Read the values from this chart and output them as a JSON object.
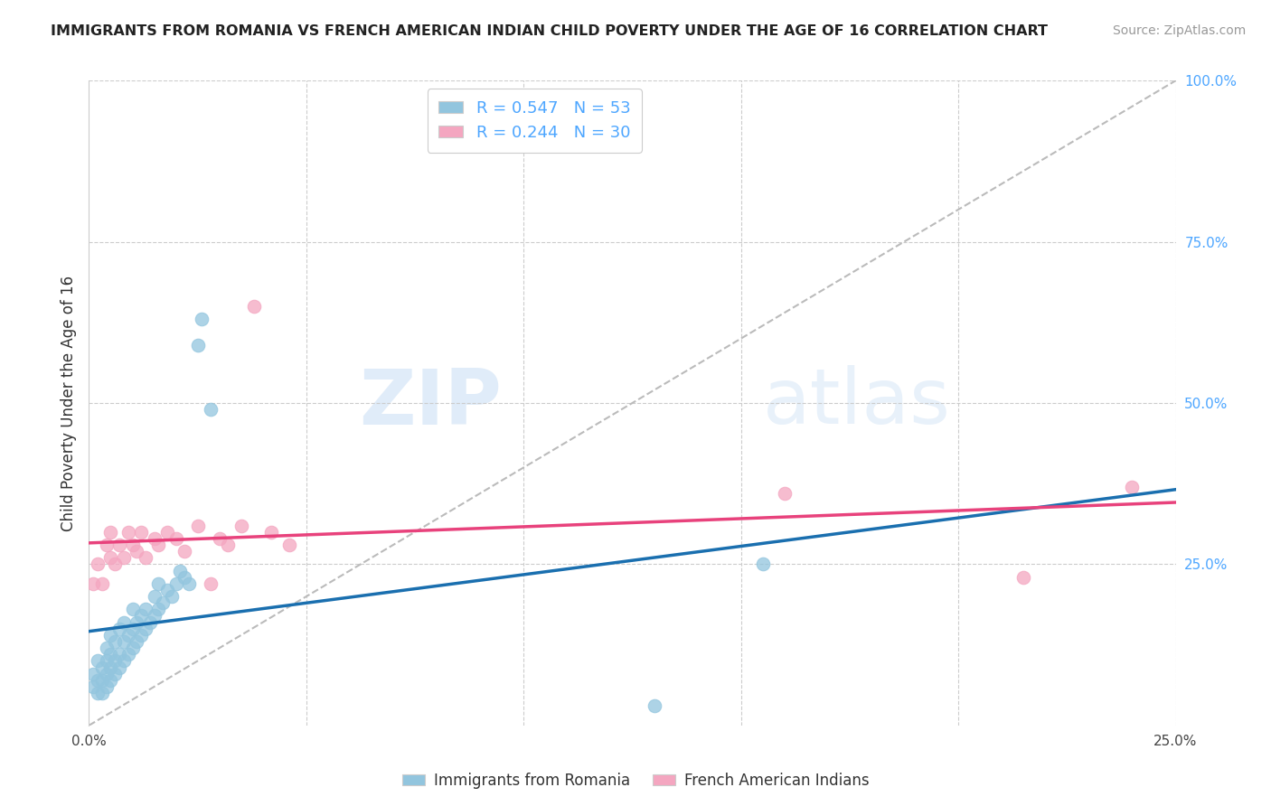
{
  "title": "IMMIGRANTS FROM ROMANIA VS FRENCH AMERICAN INDIAN CHILD POVERTY UNDER THE AGE OF 16 CORRELATION CHART",
  "source": "Source: ZipAtlas.com",
  "ylabel": "Child Poverty Under the Age of 16",
  "legend_label1": "Immigrants from Romania",
  "legend_label2": "French American Indians",
  "r1": 0.547,
  "n1": 53,
  "r2": 0.244,
  "n2": 30,
  "xlim": [
    0.0,
    0.25
  ],
  "ylim": [
    0.0,
    1.0
  ],
  "color_blue": "#92c5de",
  "color_pink": "#f4a6c0",
  "color_blue_line": "#1a6faf",
  "color_pink_line": "#e8427c",
  "color_dashed_line": "#bbbbbb",
  "watermark_zip": "ZIP",
  "watermark_atlas": "atlas",
  "blue_points_x": [
    0.001,
    0.001,
    0.002,
    0.002,
    0.002,
    0.003,
    0.003,
    0.003,
    0.004,
    0.004,
    0.004,
    0.004,
    0.005,
    0.005,
    0.005,
    0.005,
    0.006,
    0.006,
    0.006,
    0.007,
    0.007,
    0.007,
    0.008,
    0.008,
    0.008,
    0.009,
    0.009,
    0.01,
    0.01,
    0.01,
    0.011,
    0.011,
    0.012,
    0.012,
    0.013,
    0.013,
    0.014,
    0.015,
    0.015,
    0.016,
    0.016,
    0.017,
    0.018,
    0.019,
    0.02,
    0.021,
    0.022,
    0.023,
    0.025,
    0.026,
    0.028,
    0.13,
    0.155
  ],
  "blue_points_y": [
    0.06,
    0.08,
    0.05,
    0.07,
    0.1,
    0.05,
    0.07,
    0.09,
    0.06,
    0.08,
    0.1,
    0.12,
    0.07,
    0.09,
    0.11,
    0.14,
    0.08,
    0.1,
    0.13,
    0.09,
    0.11,
    0.15,
    0.1,
    0.13,
    0.16,
    0.11,
    0.14,
    0.12,
    0.15,
    0.18,
    0.13,
    0.16,
    0.14,
    0.17,
    0.15,
    0.18,
    0.16,
    0.17,
    0.2,
    0.18,
    0.22,
    0.19,
    0.21,
    0.2,
    0.22,
    0.24,
    0.23,
    0.22,
    0.59,
    0.63,
    0.49,
    0.03,
    0.25
  ],
  "pink_points_x": [
    0.001,
    0.002,
    0.003,
    0.004,
    0.005,
    0.005,
    0.006,
    0.007,
    0.008,
    0.009,
    0.01,
    0.011,
    0.012,
    0.013,
    0.015,
    0.016,
    0.018,
    0.02,
    0.022,
    0.025,
    0.028,
    0.03,
    0.032,
    0.035,
    0.038,
    0.042,
    0.046,
    0.16,
    0.215,
    0.24
  ],
  "pink_points_y": [
    0.22,
    0.25,
    0.22,
    0.28,
    0.26,
    0.3,
    0.25,
    0.28,
    0.26,
    0.3,
    0.28,
    0.27,
    0.3,
    0.26,
    0.29,
    0.28,
    0.3,
    0.29,
    0.27,
    0.31,
    0.22,
    0.29,
    0.28,
    0.31,
    0.65,
    0.3,
    0.28,
    0.36,
    0.23,
    0.37
  ]
}
